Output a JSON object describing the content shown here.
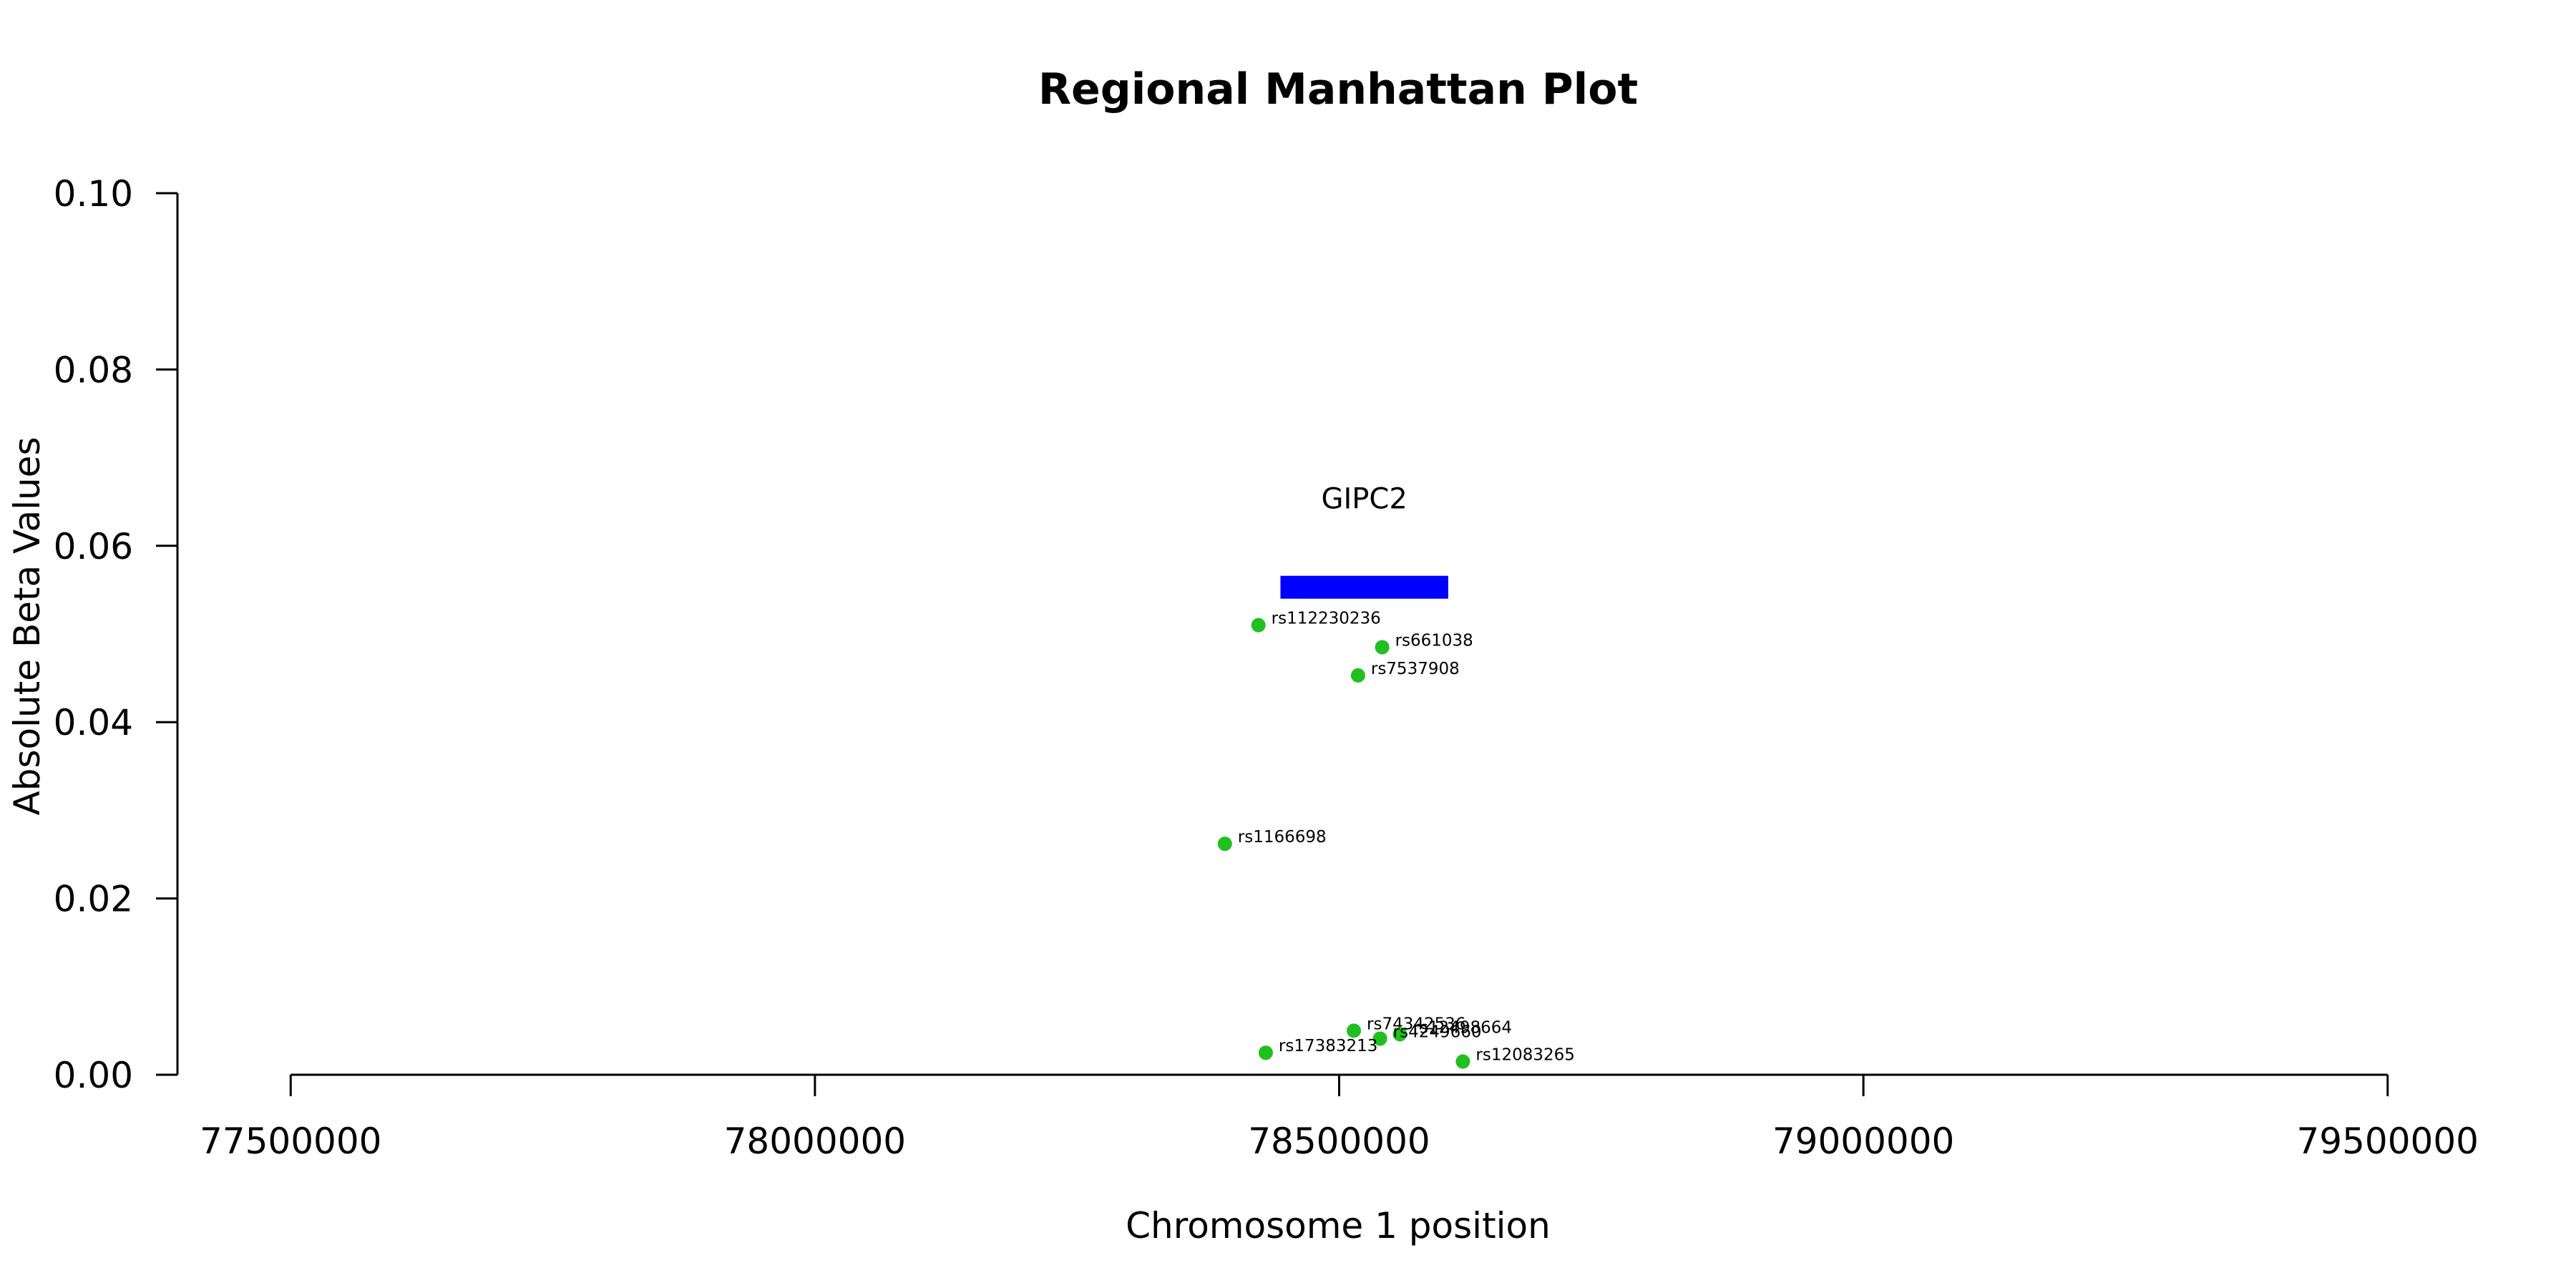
{
  "chart_data": {
    "type": "scatter",
    "title": "Regional Manhattan Plot",
    "xlabel": "Chromosome 1 position",
    "ylabel": "Absolute Beta Values",
    "xlim": [
      77392000,
      79608000
    ],
    "ylim": [
      0,
      0.1
    ],
    "xticks": [
      77500000,
      78000000,
      78500000,
      79000000,
      79500000
    ],
    "xtick_labels": [
      "77500000",
      "78000000",
      "78500000",
      "79000000",
      "79500000"
    ],
    "yticks": [
      0,
      0.02,
      0.04,
      0.06,
      0.08,
      0.1
    ],
    "ytick_labels": [
      "0.00",
      "0.02",
      "0.04",
      "0.06",
      "0.08",
      "0.10"
    ],
    "grid": false,
    "point_color": "#1fc01f",
    "gene_color": "#0000ff",
    "genes": [
      {
        "name": "GIPC2",
        "start": 78444000,
        "end": 78604000,
        "y": 0.0553
      }
    ],
    "points": [
      {
        "id": "rs112230236",
        "x": 78423000,
        "y": 0.051
      },
      {
        "id": "rs661038",
        "x": 78541000,
        "y": 0.0485
      },
      {
        "id": "rs7537908",
        "x": 78518000,
        "y": 0.0453
      },
      {
        "id": "rs1166698",
        "x": 78391000,
        "y": 0.0262
      },
      {
        "id": "rs74342536",
        "x": 78514000,
        "y": 0.005
      },
      {
        "id": "rs12498664",
        "x": 78558000,
        "y": 0.0046
      },
      {
        "id": "rs4249660",
        "x": 78539000,
        "y": 0.0041
      },
      {
        "id": "rs17383213",
        "x": 78430000,
        "y": 0.0025
      },
      {
        "id": "rs12083265",
        "x": 78618000,
        "y": 0.0015
      }
    ]
  }
}
